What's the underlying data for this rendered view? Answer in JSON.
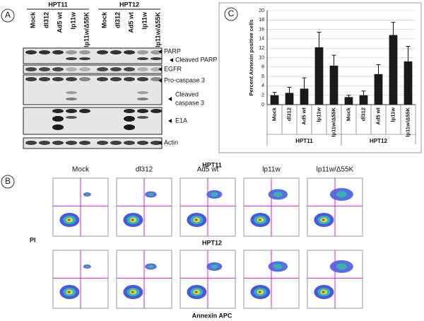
{
  "panel_labels": [
    "A",
    "B",
    "C"
  ],
  "blot": {
    "groups": [
      "HPT11",
      "HPT12"
    ],
    "lanes": [
      "Mock",
      "dl312",
      "Ad5 wt",
      "lp11w",
      "lp11w/Δ55K",
      "Mock",
      "dl312",
      "Ad5 wt",
      "lp11w",
      "lp11w/Δ55K"
    ],
    "bands": [
      "PARP",
      "Cleaved  PARP",
      "EGFR",
      "Pro-caspase 3",
      "Cleaved",
      "caspase 3",
      "E1A",
      "Actin"
    ]
  },
  "flow": {
    "rows": [
      "HPT11",
      "HPT12"
    ],
    "columns": [
      "Mock",
      "dl312",
      "Ad5 wt",
      "lp11w",
      "lp11w/Δ55K"
    ],
    "y_label": "PI",
    "x_label": "Annexin APC"
  },
  "chart_data": {
    "type": "bar",
    "y_label": "Percent Annexin positive cells",
    "categories": [
      "Mock",
      "dl312",
      "Ad5 wt",
      "lp11w",
      "lp11w/Δ55K",
      "Mock",
      "dl312",
      "Ad5 wt",
      "lp11w",
      "lp11w/Δ55K"
    ],
    "groups": [
      "HPT11",
      "HPT12"
    ],
    "values": [
      2.0,
      2.5,
      3.4,
      12.2,
      8.3,
      1.6,
      2.0,
      6.5,
      14.8,
      9.2
    ],
    "errors": [
      0.6,
      1.2,
      2.3,
      3.2,
      2.2,
      0.4,
      0.9,
      2.0,
      2.7,
      3.2
    ],
    "color": "#1a1a1a",
    "ylim": [
      0,
      20
    ],
    "yticks": [
      0,
      2,
      4,
      6,
      8,
      10,
      12,
      14,
      16,
      18,
      20
    ],
    "grid": true
  }
}
